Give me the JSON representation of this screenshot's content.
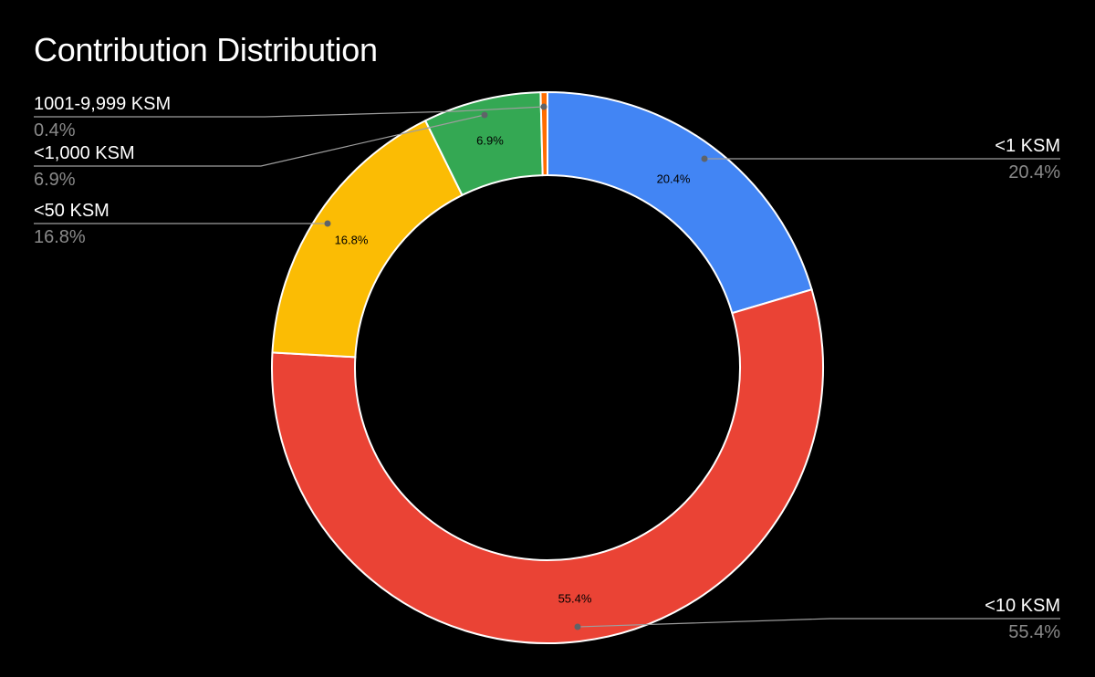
{
  "chart_data": {
    "type": "pie",
    "variant": "donut",
    "title": "Contribution Distribution",
    "slices": [
      {
        "label": "<1 KSM",
        "value": 20.4,
        "display": "20.4%",
        "color": "#4285f4"
      },
      {
        "label": "<10 KSM",
        "value": 55.4,
        "display": "55.4%",
        "color": "#ea4335"
      },
      {
        "label": "<50 KSM",
        "value": 16.8,
        "display": "16.8%",
        "color": "#fbbc04"
      },
      {
        "label": "<1,000 KSM",
        "value": 6.9,
        "display": "6.9%",
        "color": "#34a853"
      },
      {
        "label": "1001-9,999 KSM",
        "value": 0.4,
        "display": "0.4%",
        "color": "#ff6d01"
      }
    ],
    "start_angle": "top",
    "direction": "clockwise",
    "legend": "callout-labels"
  },
  "colors": {
    "background": "#000000",
    "slice_border": "#ffffff",
    "leader_line": "#9e9e9e",
    "category_text": "#ffffff",
    "percent_text": "#8a8a8a"
  }
}
